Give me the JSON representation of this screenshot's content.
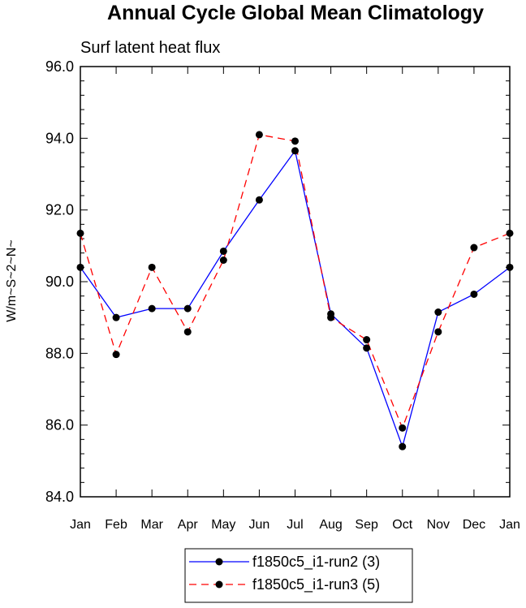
{
  "chart_data": {
    "type": "line",
    "title": "Annual Cycle Global Mean Climatology",
    "subtitle": "Surf latent heat flux",
    "ylabel": "W/m~S~2~N~",
    "xlabel": "",
    "categories": [
      "Jan",
      "Feb",
      "Mar",
      "Apr",
      "May",
      "Jun",
      "Jul",
      "Aug",
      "Sep",
      "Oct",
      "Nov",
      "Dec",
      "Jan"
    ],
    "ylim": [
      84.0,
      96.0
    ],
    "yticks": [
      "84.0",
      "86.0",
      "88.0",
      "90.0",
      "92.0",
      "94.0",
      "96.0"
    ],
    "grid": false,
    "legend_position": "bottom-center",
    "series": [
      {
        "name": "f1850c5_i1-run2 (3)",
        "color": "#0000ff",
        "dash": "solid",
        "values": [
          90.4,
          89.0,
          89.25,
          89.25,
          90.85,
          92.28,
          93.65,
          89.1,
          88.15,
          85.4,
          89.15,
          89.65,
          90.4
        ]
      },
      {
        "name": "f1850c5_i1-run3 (5)",
        "color": "#ff0000",
        "dash": "dashed",
        "values": [
          91.35,
          87.97,
          90.4,
          88.6,
          90.6,
          94.1,
          93.92,
          89.0,
          88.38,
          85.92,
          88.6,
          90.95,
          91.35
        ]
      }
    ]
  }
}
